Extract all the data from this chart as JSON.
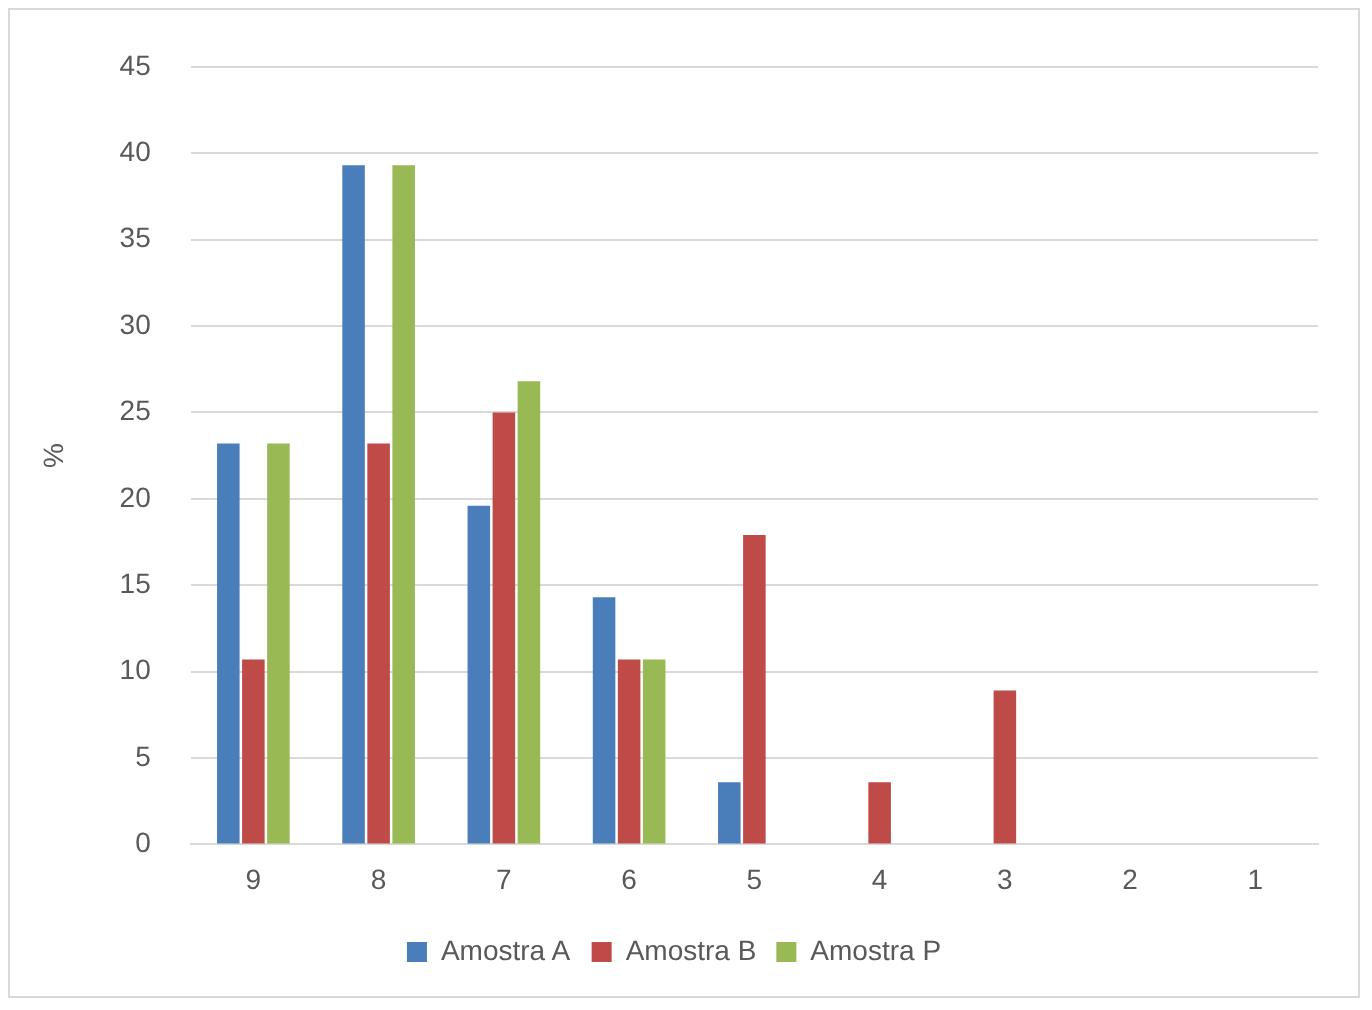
{
  "chart_data": {
    "type": "bar",
    "ylabel": "%",
    "categories": [
      "9",
      "8",
      "7",
      "6",
      "5",
      "4",
      "3",
      "2",
      "1"
    ],
    "series": [
      {
        "name": "Amostra A",
        "color": "#4a7ebb",
        "values": [
          23.2,
          39.3,
          19.6,
          14.3,
          3.6,
          0,
          0,
          0,
          0
        ]
      },
      {
        "name": "Amostra B",
        "color": "#be4b48",
        "values": [
          10.7,
          23.2,
          25,
          10.7,
          17.9,
          3.6,
          8.9,
          0,
          0
        ]
      },
      {
        "name": "Amostra P",
        "color": "#98b954",
        "values": [
          23.2,
          39.3,
          26.8,
          10.7,
          0,
          0,
          0,
          0,
          0
        ]
      }
    ],
    "ylim": [
      0,
      45
    ],
    "yticks": [
      0,
      5,
      10,
      15,
      20,
      25,
      30,
      35,
      40,
      45
    ],
    "grid": "y",
    "legend": "bottom"
  }
}
